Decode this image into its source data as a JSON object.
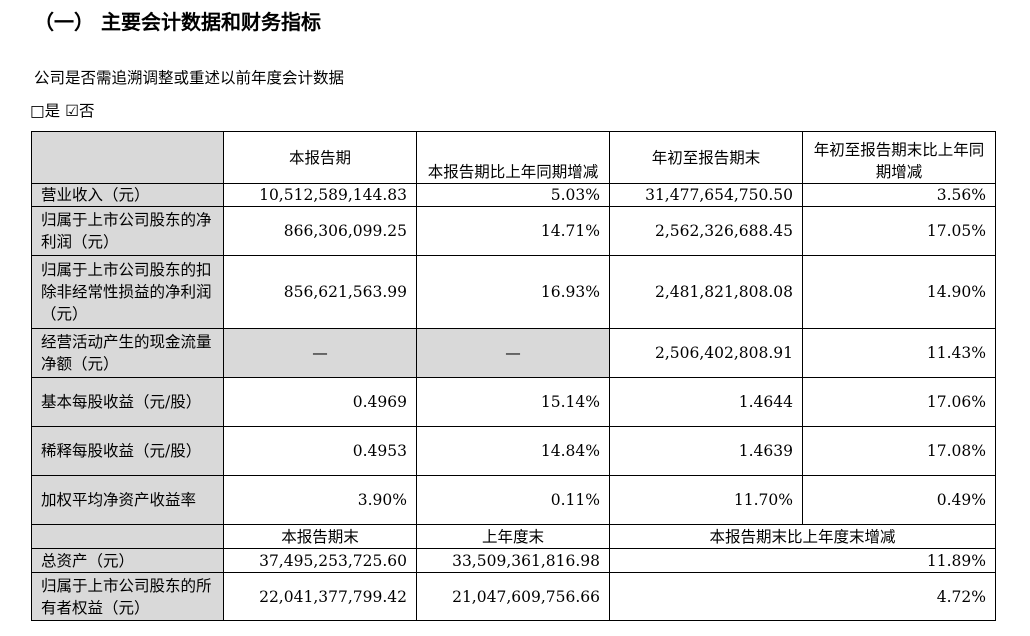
{
  "section_title": "（一） 主要会计数据和财务指标",
  "restate_question": "公司是否需追溯调整或重述以前年度会计数据",
  "options": {
    "yes_box": "□",
    "yes_label": "是",
    "no_box": "☑",
    "no_label": "否"
  },
  "table1": {
    "headers": [
      "本报告期",
      "本报告期比上年同期增减",
      "年初至报告期末",
      "年初至报告期末比上年同期增减"
    ],
    "rows": [
      {
        "label": "营业收入（元）",
        "values": [
          "10,512,589,144.83",
          "5.03%",
          "31,477,654,750.50",
          "3.56%"
        ]
      },
      {
        "label": "归属于上市公司股东的净利润（元）",
        "values": [
          "866,306,099.25",
          "14.71%",
          "2,562,326,688.45",
          "17.05%"
        ]
      },
      {
        "label": "归属于上市公司股东的扣除非经常性损益的净利润（元）",
        "values": [
          "856,621,563.99",
          "16.93%",
          "2,481,821,808.08",
          "14.90%"
        ]
      },
      {
        "label": "经营活动产生的现金流量净额（元）",
        "values": [
          "—",
          "—",
          "2,506,402,808.91",
          "11.43%"
        ]
      },
      {
        "label": "基本每股收益（元/股）",
        "values": [
          "0.4969",
          "15.14%",
          "1.4644",
          "17.06%"
        ]
      },
      {
        "label": "稀释每股收益（元/股）",
        "values": [
          "0.4953",
          "14.84%",
          "1.4639",
          "17.08%"
        ]
      },
      {
        "label": "加权平均净资产收益率",
        "values": [
          "3.90%",
          "0.11%",
          "11.70%",
          "0.49%"
        ]
      }
    ]
  },
  "table2": {
    "headers": [
      "本报告期末",
      "上年度末",
      "本报告期末比上年度末增减"
    ],
    "rows": [
      {
        "label": "总资产（元）",
        "values": [
          "37,495,253,725.60",
          "33,509,361,816.98",
          "11.89%"
        ]
      },
      {
        "label": "归属于上市公司股东的所有者权益（元）",
        "values": [
          "22,041,377,799.42",
          "21,047,609,756.66",
          "4.72%"
        ]
      }
    ]
  }
}
